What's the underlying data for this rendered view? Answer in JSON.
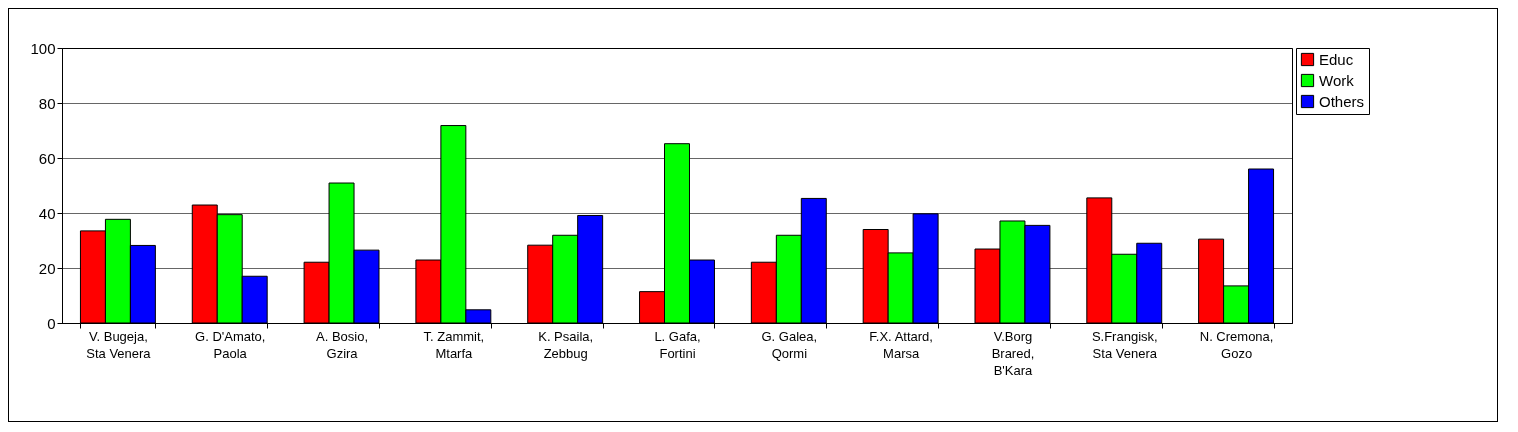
{
  "chart_data": {
    "type": "bar",
    "categories": [
      "V. Bugeja,\nSta Venera",
      "G. D'Amato,\nPaola",
      "A. Bosio,\nGzira",
      "T. Zammit,\nMtarfa",
      "K. Psaila,\nZebbug",
      "L. Gafa,\nFortini",
      "G. Galea,\nQormi",
      "F.X. Attard,\nMarsa",
      "V.Borg\nBrared,\nB'Kara",
      "S.Frangisk,\nSta Venera",
      "N. Cremona,\nGozo"
    ],
    "series": [
      {
        "name": "Educ",
        "color": "#ff0000",
        "values": [
          33.5,
          42.9,
          22.1,
          22.9,
          28.3,
          11.4,
          22.1,
          34,
          26.9,
          45.5,
          30.5
        ]
      },
      {
        "name": "Work",
        "color": "#00ff00",
        "values": [
          37.7,
          39.4,
          50.9,
          71.8,
          31.9,
          65.2,
          31.9,
          25.5,
          37.1,
          25,
          13.5
        ]
      },
      {
        "name": "Others",
        "color": "#0000ff",
        "values": [
          28.2,
          17,
          26.5,
          4.8,
          39.1,
          22.9,
          45.3,
          39.7,
          35.5,
          29,
          56
        ]
      }
    ],
    "ylim": [
      0,
      100
    ],
    "yticks": [
      0,
      20,
      40,
      60,
      80,
      100
    ],
    "grid": "y",
    "legend": "right"
  }
}
